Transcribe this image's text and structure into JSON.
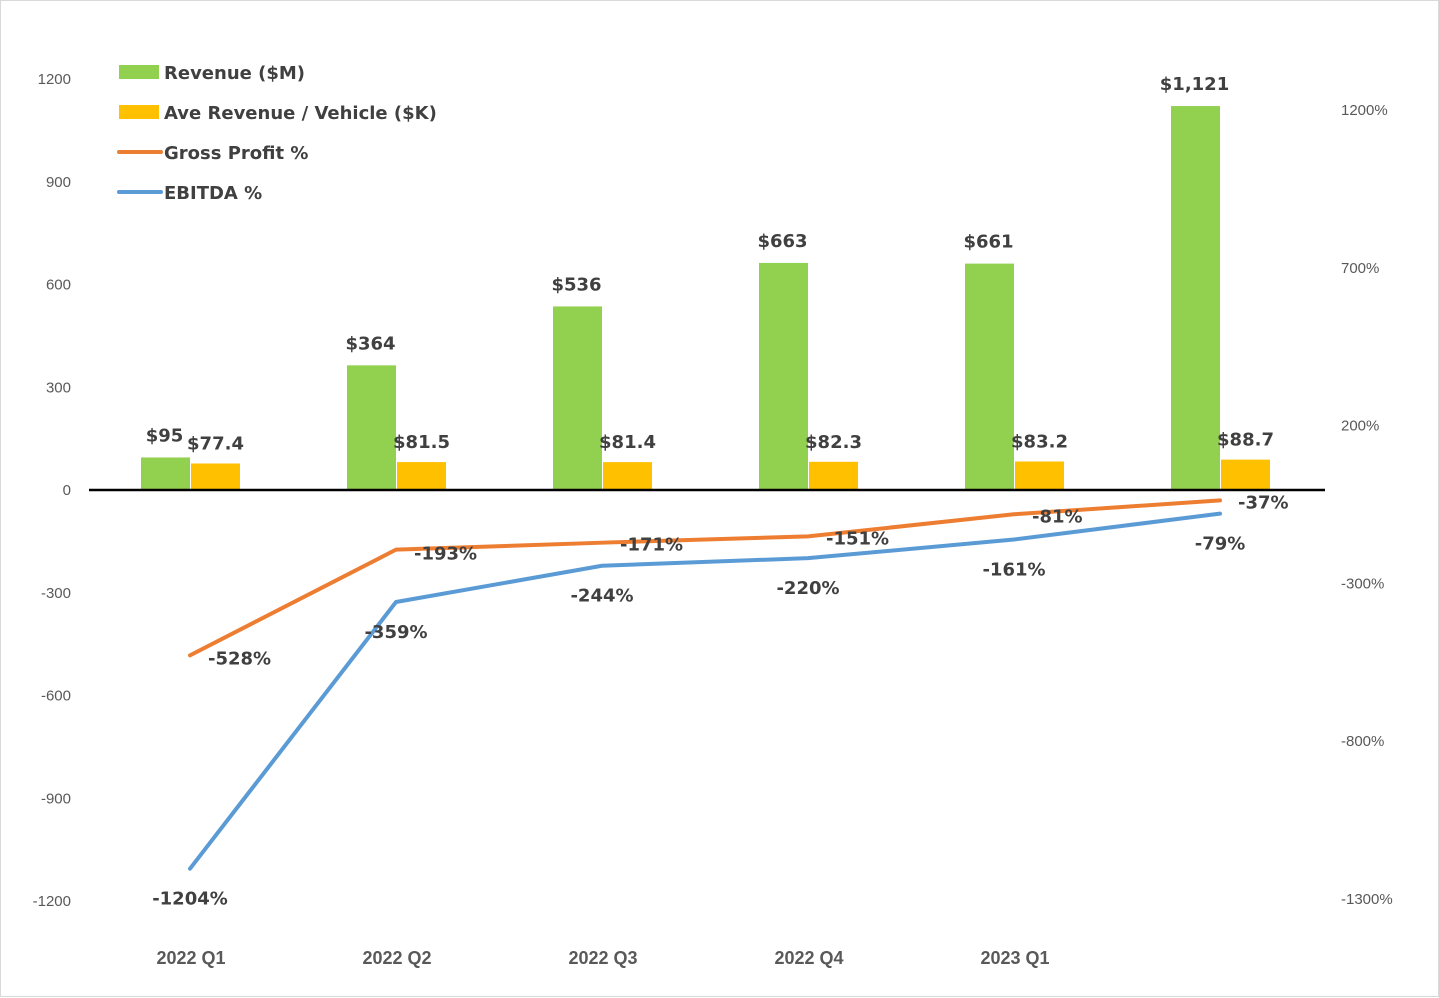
{
  "chart_data": {
    "type": "bar",
    "categories": [
      "2022 Q1",
      "2022 Q2",
      "2022 Q3",
      "2022 Q4",
      "2023 Q1",
      ""
    ],
    "series": [
      {
        "name": "Revenue ($M)",
        "type": "bar",
        "axis": "left",
        "color": "#92d050",
        "values": [
          95,
          364,
          536,
          663,
          661,
          1121
        ],
        "labels": [
          "$95",
          "$364",
          "$536",
          "$663",
          "$661",
          "$1,121"
        ]
      },
      {
        "name": "Ave Revenue / Vehicle ($K)",
        "type": "bar",
        "axis": "left",
        "color": "#ffc000",
        "values": [
          77.4,
          81.5,
          81.4,
          82.3,
          83.2,
          88.7
        ],
        "labels": [
          "$77.4",
          "$81.5",
          "$81.4",
          "$82.3",
          "$83.2",
          "$88.7"
        ]
      },
      {
        "name": "Gross Profit %",
        "type": "line",
        "axis": "right",
        "color": "#ed7d31",
        "values": [
          -528,
          -193,
          -171,
          -151,
          -81,
          -37
        ],
        "labels": [
          "-528%",
          "-193%",
          "-171%",
          "-151%",
          "-81%",
          "-37%"
        ]
      },
      {
        "name": "EBITDA %",
        "type": "line",
        "axis": "right",
        "color": "#5b9bd5",
        "values": [
          -1204,
          -359,
          -244,
          -220,
          -161,
          -79
        ],
        "labels": [
          "-1204%",
          "-359%",
          "-244%",
          "-220%",
          "-161%",
          "-79%"
        ]
      }
    ],
    "y_left": {
      "ylim": [
        -1200,
        1200
      ],
      "ticks": [
        1200,
        900,
        600,
        300,
        0,
        -300,
        -600,
        -900,
        -1200
      ],
      "tick_labels": [
        "1200",
        "900",
        "600",
        "300",
        "0",
        "-300",
        "-600",
        "-900",
        "-1200"
      ]
    },
    "y_right": {
      "ylim": [
        -1300,
        1300
      ],
      "ticks": [
        1200,
        700,
        200,
        -300,
        -800,
        -1300
      ],
      "tick_labels": [
        "1200%",
        "700%",
        "200%",
        "-300%",
        "-800%",
        "-1300%"
      ]
    },
    "legend": "top-left",
    "grid": false
  }
}
